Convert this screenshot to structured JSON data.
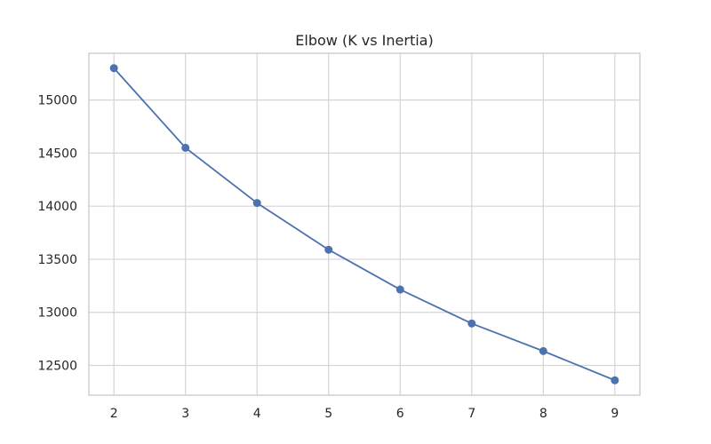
{
  "chart_data": {
    "type": "line",
    "title": "Elbow (K vs Inertia)",
    "xlabel": "",
    "ylabel": "",
    "x": [
      2,
      3,
      4,
      5,
      6,
      7,
      8,
      9
    ],
    "series": [
      {
        "values": [
          15300,
          14550,
          14030,
          13590,
          13215,
          12895,
          12635,
          12360
        ],
        "color": "#4c72b0",
        "marker": "circle"
      }
    ],
    "x_ticks": [
      "2",
      "3",
      "4",
      "5",
      "6",
      "7",
      "8",
      "9"
    ],
    "y_ticks": [
      12500,
      13000,
      13500,
      14000,
      14500,
      15000
    ],
    "y_tick_labels": [
      "12500",
      "13000",
      "13500",
      "14000",
      "14500",
      "15000"
    ],
    "xlim": [
      1.65,
      9.35
    ],
    "ylim": [
      12220,
      15440
    ],
    "grid": true,
    "grid_color": "#d5d5d5",
    "frame_color": "#cccccc"
  }
}
